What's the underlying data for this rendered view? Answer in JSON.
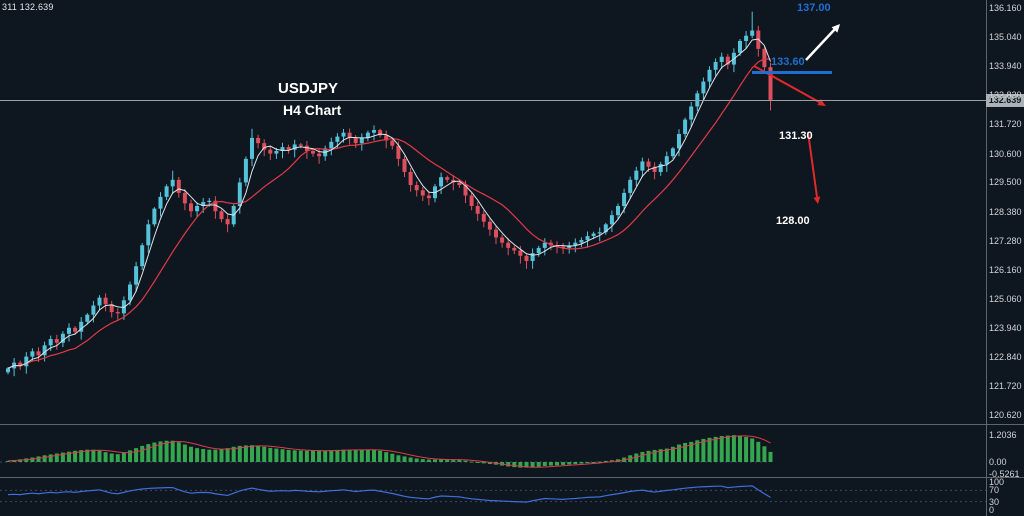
{
  "quote_readout": "311 132.639",
  "chart_labels": {
    "symbol": "USDJPY",
    "timeframe": "H4 Chart"
  },
  "annotations": {
    "bullish_target": "137.00",
    "breakdown_level": "133.60",
    "support_1": "131.30",
    "support_2": "128.00"
  },
  "price_line": {
    "value": "132.639"
  },
  "axis": {
    "price_labels": [
      "136.160",
      "135.040",
      "133.940",
      "132.820",
      "131.720",
      "130.600",
      "129.500",
      "128.380",
      "127.280",
      "126.160",
      "125.060",
      "123.940",
      "122.840",
      "121.720",
      "120.620"
    ],
    "histogram_labels": [
      "1.2036",
      "0.00",
      "-0.5261"
    ],
    "oscillator_labels": [
      "100",
      "70",
      "30",
      "0"
    ]
  },
  "colors": {
    "background": "#0e161f",
    "bull_candle": "#54c3da",
    "bear_candle": "#dd4f5c",
    "ma_fast": "#dde4ea",
    "ma_slow": "#e23b47",
    "histogram": "#33a64e",
    "signal_line": "#e03c4a",
    "oscillator_line": "#3f6fd8",
    "annotation_blue": "#1f6fd0",
    "annotation_red": "#e02a2a",
    "price_badge_bg": "#aab2b8",
    "separator": "#5c656e"
  },
  "chart_data": {
    "type": "candlestick",
    "symbol": "USDJPY",
    "timeframe": "H4",
    "title": "USDJPY H4 Chart",
    "price_pane_ylim": [
      120.62,
      136.16
    ],
    "current_price": 132.639,
    "closes": [
      122.4,
      122.62,
      122.48,
      122.85,
      123.05,
      122.9,
      123.28,
      123.52,
      123.38,
      123.72,
      123.95,
      123.8,
      124.18,
      124.45,
      124.8,
      125.1,
      124.85,
      124.55,
      124.5,
      125.0,
      125.6,
      126.3,
      127.1,
      127.9,
      128.5,
      128.95,
      129.35,
      129.6,
      129.1,
      128.7,
      128.4,
      128.6,
      128.75,
      128.8,
      128.4,
      128.1,
      127.9,
      128.6,
      129.5,
      130.4,
      131.2,
      131.0,
      130.75,
      130.6,
      130.7,
      130.85,
      130.75,
      130.95,
      130.9,
      130.7,
      130.6,
      130.5,
      130.8,
      131.05,
      131.25,
      131.4,
      131.2,
      131.0,
      131.2,
      131.4,
      131.5,
      131.3,
      131.1,
      130.9,
      130.4,
      129.9,
      129.4,
      129.2,
      129.0,
      128.9,
      129.35,
      129.7,
      129.6,
      129.5,
      129.4,
      129.0,
      128.6,
      128.3,
      128.0,
      127.7,
      127.4,
      127.2,
      127.0,
      126.9,
      126.7,
      126.5,
      126.8,
      127.0,
      127.2,
      127.1,
      127.05,
      127.0,
      127.1,
      127.2,
      127.3,
      127.45,
      127.55,
      127.6,
      127.9,
      128.25,
      128.6,
      129.1,
      129.6,
      129.95,
      130.3,
      130.1,
      129.9,
      130.2,
      130.5,
      130.8,
      131.35,
      131.9,
      132.4,
      132.9,
      133.35,
      133.8,
      134.1,
      134.3,
      134.0,
      134.45,
      134.9,
      135.1,
      135.3,
      134.6,
      133.9,
      132.65
    ],
    "wick_overrides": {
      "27": {
        "high": 129.95
      },
      "40": {
        "high": 131.55
      },
      "85": {
        "low": 126.2
      },
      "122": {
        "high": 136.02
      },
      "125": {
        "low": 132.25
      }
    },
    "overlays": {
      "ma_fast_period": 4,
      "ma_slow_period": 12
    },
    "indicators": [
      {
        "name": "momentum_histogram",
        "type": "bar",
        "ylim": [
          -0.5261,
          1.2036
        ],
        "signal_period": 5,
        "values": [
          0.05,
          0.08,
          0.12,
          0.16,
          0.2,
          0.25,
          0.3,
          0.34,
          0.38,
          0.42,
          0.46,
          0.5,
          0.53,
          0.55,
          0.55,
          0.5,
          0.44,
          0.38,
          0.35,
          0.42,
          0.52,
          0.62,
          0.72,
          0.8,
          0.87,
          0.92,
          0.95,
          0.95,
          0.88,
          0.78,
          0.68,
          0.62,
          0.58,
          0.55,
          0.55,
          0.58,
          0.62,
          0.68,
          0.72,
          0.74,
          0.75,
          0.72,
          0.68,
          0.63,
          0.6,
          0.57,
          0.54,
          0.52,
          0.51,
          0.5,
          0.5,
          0.5,
          0.51,
          0.52,
          0.54,
          0.55,
          0.55,
          0.54,
          0.54,
          0.55,
          0.55,
          0.5,
          0.44,
          0.37,
          0.3,
          0.25,
          0.2,
          0.16,
          0.13,
          0.11,
          0.11,
          0.11,
          0.1,
          0.1,
          0.1,
          0.06,
          0.02,
          -0.02,
          -0.06,
          -0.09,
          -0.12,
          -0.16,
          -0.2,
          -0.23,
          -0.25,
          -0.25,
          -0.23,
          -0.21,
          -0.18,
          -0.16,
          -0.15,
          -0.13,
          -0.11,
          -0.09,
          -0.07,
          -0.05,
          -0.02,
          0.02,
          0.05,
          0.08,
          0.12,
          0.2,
          0.3,
          0.38,
          0.45,
          0.5,
          0.54,
          0.57,
          0.6,
          0.68,
          0.78,
          0.85,
          0.9,
          0.97,
          1.03,
          1.08,
          1.12,
          1.16,
          1.18,
          1.2,
          1.17,
          1.12,
          1.05,
          0.9,
          0.7,
          0.45
        ]
      },
      {
        "name": "oscillator",
        "type": "line",
        "ylim": [
          0,
          100
        ],
        "levels": [
          70,
          30
        ],
        "values": [
          55,
          56,
          55,
          58,
          60,
          58,
          61,
          63,
          61,
          64,
          65,
          63,
          66,
          68,
          70,
          72,
          66,
          60,
          58,
          63,
          68,
          72,
          75,
          77,
          78,
          79,
          80,
          80,
          72,
          65,
          60,
          62,
          63,
          62,
          58,
          55,
          52,
          60,
          68,
          74,
          78,
          74,
          70,
          67,
          68,
          69,
          68,
          70,
          69,
          67,
          66,
          65,
          67,
          69,
          70,
          72,
          69,
          66,
          68,
          70,
          71,
          67,
          63,
          59,
          54,
          49,
          45,
          43,
          41,
          40,
          46,
          50,
          49,
          48,
          47,
          43,
          40,
          38,
          36,
          34,
          33,
          32,
          31,
          30,
          29,
          28,
          33,
          37,
          41,
          40,
          39,
          38,
          40,
          41,
          43,
          45,
          46,
          47,
          51,
          55,
          58,
          62,
          66,
          69,
          71,
          67,
          64,
          67,
          70,
          72,
          75,
          78,
          80,
          82,
          83,
          84,
          85,
          85,
          80,
          82,
          84,
          85,
          86,
          72,
          58,
          45
        ]
      }
    ]
  }
}
